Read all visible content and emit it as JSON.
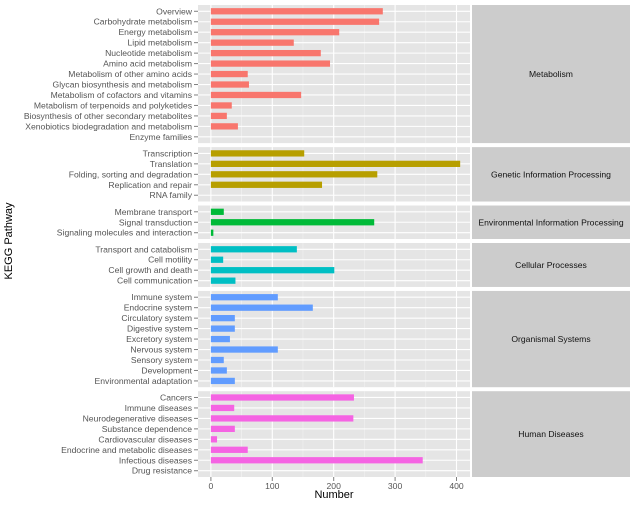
{
  "chart_data": {
    "type": "bar",
    "orientation": "horizontal",
    "xlabel": "Number",
    "ylabel": "KEGG Pathway",
    "xlim": [
      -21,
      422
    ],
    "xticks": [
      0,
      100,
      200,
      300,
      400
    ],
    "grid": true,
    "facets": [
      {
        "name": "Metabolism",
        "color": "#F8766D",
        "categories": [
          "Overview",
          "Carbohydrate metabolism",
          "Energy metabolism",
          "Lipid metabolism",
          "Nucleotide metabolism",
          "Amino acid metabolism",
          "Metabolism of other amino acids",
          "Glycan biosynthesis and metabolism",
          "Metabolism of cofactors and vitamins",
          "Metabolism of terpenoids and polyketides",
          "Biosynthesis of other secondary metabolites",
          "Xenobiotics biodegradation and metabolism",
          "Enzyme families"
        ],
        "values": [
          280,
          274,
          209,
          135,
          179,
          194,
          60,
          62,
          147,
          34,
          26,
          44,
          0
        ]
      },
      {
        "name": "Genetic Information Processing",
        "color": "#B79F00",
        "categories": [
          "Transcription",
          "Translation",
          "Folding, sorting and degradation",
          "Replication and repair",
          "RNA family"
        ],
        "values": [
          152,
          406,
          271,
          181,
          0
        ]
      },
      {
        "name": "Environmental Information Processing",
        "color": "#00BA38",
        "categories": [
          "Membrane transport",
          "Signal transduction",
          "Signaling molecules and interaction"
        ],
        "values": [
          21,
          266,
          4
        ]
      },
      {
        "name": "Cellular Processes",
        "color": "#00BFC4",
        "categories": [
          "Transport and catabolism",
          "Cell motility",
          "Cell growth and death",
          "Cell communication"
        ],
        "values": [
          140,
          20,
          201,
          40
        ]
      },
      {
        "name": "Organismal Systems",
        "color": "#619CFF",
        "categories": [
          "Immune system",
          "Endocrine system",
          "Circulatory system",
          "Digestive system",
          "Excretory system",
          "Nervous system",
          "Sensory system",
          "Development",
          "Environmental adaptation"
        ],
        "values": [
          109,
          166,
          39,
          39,
          31,
          109,
          21,
          26,
          39
        ]
      },
      {
        "name": "Human Diseases",
        "color": "#F564E3",
        "categories": [
          "Cancers",
          "Immune diseases",
          "Neurodegenerative diseases",
          "Substance dependence",
          "Cardiovascular diseases",
          "Endocrine and metabolic diseases",
          "Infectious diseases",
          "Drug resistance"
        ],
        "values": [
          233,
          38,
          232,
          39,
          10,
          60,
          345,
          0
        ]
      }
    ]
  }
}
